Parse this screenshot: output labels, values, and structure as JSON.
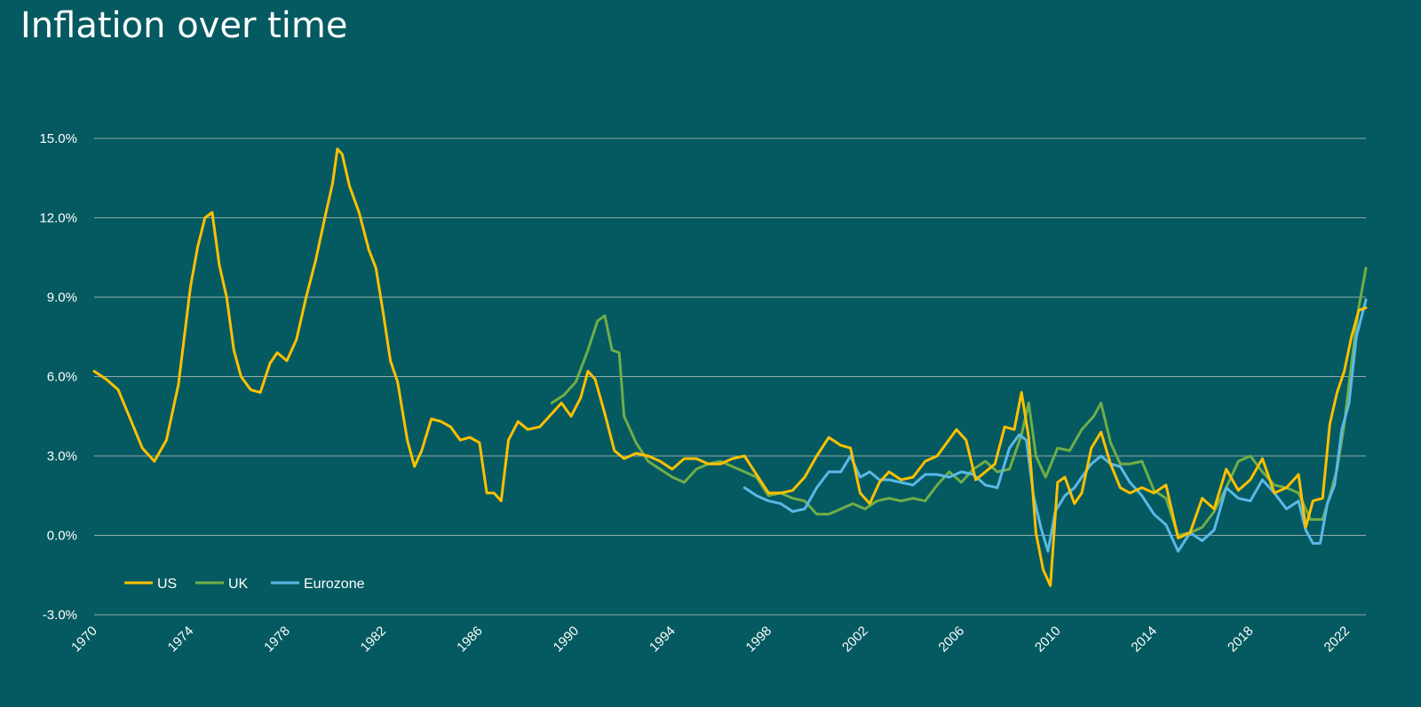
{
  "chart_data": {
    "type": "line",
    "title": "Inflation over time",
    "xlabel": "",
    "ylabel": "",
    "xlim": [
      1970,
      2022.8
    ],
    "ylim": [
      -3.0,
      15.0
    ],
    "grid": true,
    "y_ticks": [
      -3.0,
      0.0,
      3.0,
      6.0,
      9.0,
      12.0,
      15.0
    ],
    "y_tick_labels": [
      "-3.0%",
      "0.0%",
      "3.0%",
      "6.0%",
      "9.0%",
      "12.0%",
      "15.0%"
    ],
    "x_ticks": [
      1970,
      1974,
      1978,
      1982,
      1986,
      1990,
      1994,
      1998,
      2002,
      2006,
      2010,
      2014,
      2018,
      2022
    ],
    "x_tick_labels": [
      "1970",
      "1974",
      "1978",
      "1982",
      "1986",
      "1990",
      "1994",
      "1998",
      "2002",
      "2006",
      "2010",
      "2014",
      "2018",
      "2022"
    ],
    "legend_position": "bottom-left",
    "series": [
      {
        "name": "US",
        "color": "#ffc000",
        "x": [
          1970.0,
          1970.5,
          1971.0,
          1971.5,
          1972.0,
          1972.5,
          1973.0,
          1973.5,
          1974.0,
          1974.3,
          1974.6,
          1974.9,
          1975.2,
          1975.5,
          1975.8,
          1976.1,
          1976.5,
          1976.9,
          1977.3,
          1977.6,
          1978.0,
          1978.4,
          1978.8,
          1979.2,
          1979.6,
          1979.9,
          1980.1,
          1980.3,
          1980.6,
          1981.0,
          1981.4,
          1981.7,
          1982.0,
          1982.3,
          1982.6,
          1983.0,
          1983.3,
          1983.6,
          1984.0,
          1984.4,
          1984.8,
          1985.2,
          1985.6,
          1986.0,
          1986.3,
          1986.6,
          1986.9,
          1987.2,
          1987.6,
          1988.0,
          1988.5,
          1989.0,
          1989.4,
          1989.8,
          1990.2,
          1990.5,
          1990.8,
          1991.2,
          1991.6,
          1992.0,
          1992.5,
          1993.0,
          1993.5,
          1994.0,
          1994.5,
          1995.0,
          1995.5,
          1996.0,
          1996.5,
          1997.0,
          1997.5,
          1998.0,
          1998.5,
          1999.0,
          1999.5,
          2000.0,
          2000.5,
          2001.0,
          2001.4,
          2001.8,
          2002.2,
          2002.6,
          2003.0,
          2003.5,
          2004.0,
          2004.5,
          2005.0,
          2005.4,
          2005.8,
          2006.2,
          2006.6,
          2007.0,
          2007.4,
          2007.8,
          2008.2,
          2008.5,
          2008.8,
          2009.1,
          2009.4,
          2009.7,
          2010.0,
          2010.3,
          2010.7,
          2011.0,
          2011.4,
          2011.8,
          2012.2,
          2012.6,
          2013.0,
          2013.5,
          2014.0,
          2014.5,
          2015.0,
          2015.5,
          2016.0,
          2016.5,
          2017.0,
          2017.5,
          2018.0,
          2018.5,
          2019.0,
          2019.5,
          2020.0,
          2020.3,
          2020.6,
          2021.0,
          2021.3,
          2021.6,
          2021.9,
          2022.2,
          2022.5,
          2022.8
        ],
        "values": [
          6.2,
          5.9,
          5.5,
          4.4,
          3.3,
          2.8,
          3.6,
          5.7,
          9.4,
          10.9,
          12.0,
          12.2,
          10.2,
          9.0,
          7.0,
          6.0,
          5.5,
          5.4,
          6.5,
          6.9,
          6.6,
          7.4,
          9.0,
          10.4,
          12.1,
          13.3,
          14.6,
          14.4,
          13.2,
          12.2,
          10.8,
          10.1,
          8.4,
          6.6,
          5.8,
          3.6,
          2.6,
          3.2,
          4.4,
          4.3,
          4.1,
          3.6,
          3.7,
          3.5,
          1.6,
          1.6,
          1.3,
          3.6,
          4.3,
          4.0,
          4.1,
          4.6,
          5.0,
          4.5,
          5.2,
          6.2,
          5.9,
          4.6,
          3.2,
          2.9,
          3.1,
          3.0,
          2.8,
          2.5,
          2.9,
          2.9,
          2.7,
          2.7,
          2.9,
          3.0,
          2.3,
          1.6,
          1.6,
          1.7,
          2.2,
          3.0,
          3.7,
          3.4,
          3.3,
          1.6,
          1.2,
          2.0,
          2.4,
          2.1,
          2.2,
          2.8,
          3.0,
          3.5,
          4.0,
          3.6,
          2.1,
          2.4,
          2.7,
          4.1,
          4.0,
          5.4,
          3.7,
          0.1,
          -1.3,
          -1.9,
          2.0,
          2.2,
          1.2,
          1.6,
          3.3,
          3.9,
          2.7,
          1.8,
          1.6,
          1.8,
          1.6,
          1.9,
          -0.1,
          0.1,
          1.4,
          1.0,
          2.5,
          1.7,
          2.1,
          2.9,
          1.6,
          1.8,
          2.3,
          0.3,
          1.3,
          1.4,
          4.2,
          5.4,
          6.2,
          7.5,
          8.5,
          8.6
        ]
      },
      {
        "name": "UK",
        "color": "#70ad47",
        "x": [
          1989.0,
          1989.5,
          1990.0,
          1990.5,
          1990.9,
          1991.2,
          1991.5,
          1991.8,
          1992.0,
          1992.5,
          1993.0,
          1993.5,
          1994.0,
          1994.5,
          1995.0,
          1995.5,
          1996.0,
          1996.5,
          1997.0,
          1997.5,
          1998.0,
          1998.5,
          1999.0,
          1999.5,
          2000.0,
          2000.5,
          2001.0,
          2001.5,
          2002.0,
          2002.5,
          2003.0,
          2003.5,
          2004.0,
          2004.5,
          2005.0,
          2005.5,
          2006.0,
          2006.5,
          2007.0,
          2007.5,
          2008.0,
          2008.5,
          2008.8,
          2009.1,
          2009.5,
          2010.0,
          2010.5,
          2011.0,
          2011.5,
          2011.8,
          2012.2,
          2012.6,
          2013.0,
          2013.5,
          2014.0,
          2014.5,
          2015.0,
          2015.5,
          2016.0,
          2016.5,
          2017.0,
          2017.5,
          2018.0,
          2018.5,
          2019.0,
          2019.5,
          2020.0,
          2020.5,
          2021.0,
          2021.3,
          2021.6,
          2021.9,
          2022.2,
          2022.5,
          2022.8
        ],
        "values": [
          5.0,
          5.3,
          5.8,
          7.0,
          8.1,
          8.3,
          7.0,
          6.9,
          4.5,
          3.5,
          2.8,
          2.5,
          2.2,
          2.0,
          2.5,
          2.7,
          2.8,
          2.6,
          2.4,
          2.2,
          1.5,
          1.6,
          1.4,
          1.3,
          0.8,
          0.8,
          1.0,
          1.2,
          1.0,
          1.3,
          1.4,
          1.3,
          1.4,
          1.3,
          1.9,
          2.4,
          2.0,
          2.5,
          2.8,
          2.4,
          2.5,
          3.8,
          5.0,
          3.0,
          2.2,
          3.3,
          3.2,
          4.0,
          4.5,
          5.0,
          3.5,
          2.7,
          2.7,
          2.8,
          1.7,
          1.4,
          0.0,
          0.1,
          0.3,
          0.9,
          1.8,
          2.8,
          3.0,
          2.4,
          1.9,
          1.8,
          1.6,
          0.6,
          0.6,
          1.5,
          2.5,
          4.2,
          6.5,
          8.6,
          10.1
        ]
      },
      {
        "name": "Eurozone",
        "color": "#5bb8e8",
        "x": [
          1997.0,
          1997.5,
          1998.0,
          1998.5,
          1999.0,
          1999.5,
          2000.0,
          2000.5,
          2001.0,
          2001.4,
          2001.8,
          2002.2,
          2002.6,
          2003.0,
          2003.5,
          2004.0,
          2004.5,
          2005.0,
          2005.5,
          2006.0,
          2006.5,
          2007.0,
          2007.5,
          2008.0,
          2008.4,
          2008.7,
          2009.0,
          2009.3,
          2009.6,
          2009.9,
          2010.3,
          2010.7,
          2011.0,
          2011.4,
          2011.8,
          2012.2,
          2012.6,
          2013.0,
          2013.5,
          2014.0,
          2014.5,
          2015.0,
          2015.5,
          2016.0,
          2016.5,
          2017.0,
          2017.5,
          2018.0,
          2018.5,
          2019.0,
          2019.5,
          2020.0,
          2020.3,
          2020.6,
          2020.9,
          2021.2,
          2021.5,
          2021.8,
          2022.1,
          2022.4,
          2022.8
        ],
        "values": [
          1.8,
          1.5,
          1.3,
          1.2,
          0.9,
          1.0,
          1.8,
          2.4,
          2.4,
          3.0,
          2.2,
          2.4,
          2.1,
          2.1,
          2.0,
          1.9,
          2.3,
          2.3,
          2.2,
          2.4,
          2.3,
          1.9,
          1.8,
          3.3,
          3.8,
          3.6,
          1.5,
          0.3,
          -0.6,
          0.9,
          1.5,
          1.8,
          2.2,
          2.7,
          3.0,
          2.7,
          2.6,
          2.0,
          1.5,
          0.8,
          0.4,
          -0.6,
          0.1,
          -0.2,
          0.2,
          1.8,
          1.4,
          1.3,
          2.1,
          1.6,
          1.0,
          1.3,
          0.2,
          -0.3,
          -0.3,
          1.2,
          1.9,
          4.0,
          5.0,
          7.5,
          8.9
        ]
      }
    ]
  }
}
